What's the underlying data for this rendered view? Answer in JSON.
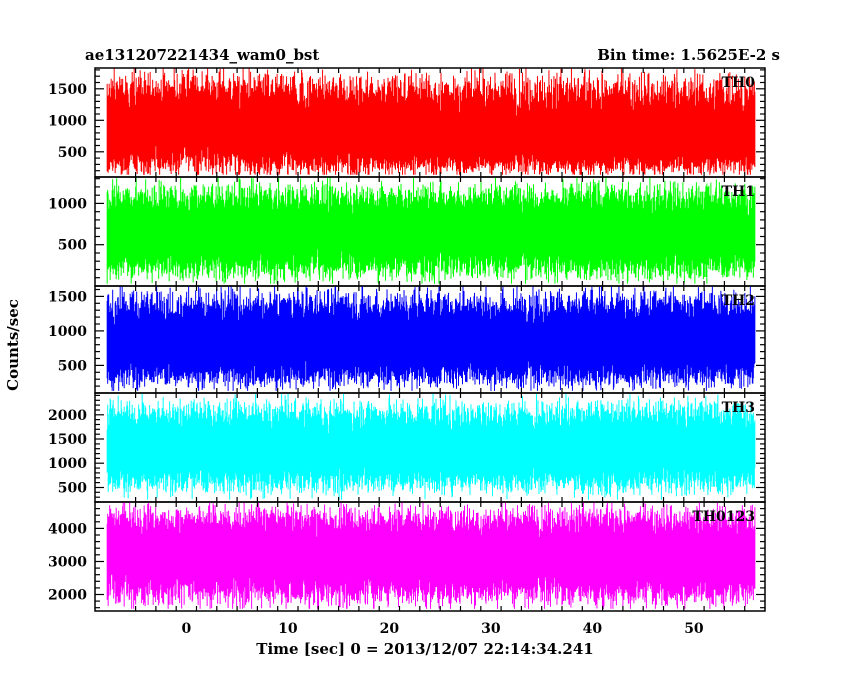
{
  "chart_data": {
    "type": "line",
    "title_left": "ae131207221434_wam0_bst",
    "title_right": "Bin time: 1.5625E-2 s",
    "xlabel": "Time [sec] 0 = 2013/12/07 22:14:34.241",
    "ylabel": "Counts/sec",
    "xlim": [
      -9,
      57
    ],
    "x_ticks": [
      0,
      10,
      20,
      30,
      40,
      50
    ],
    "x_tick_labels": [
      "0",
      "10",
      "20",
      "30",
      "40",
      "50"
    ],
    "x_data_range": [
      -7.8,
      56.0
    ],
    "bin_time": 0.015625,
    "grid": false,
    "panels": [
      {
        "name": "TH0",
        "color": "#ff0000",
        "ylim": [
          100,
          1830
        ],
        "y_ticks": [
          500,
          1000,
          1500
        ],
        "y_tick_labels": [
          "500",
          "1000",
          "1500"
        ],
        "typical_range": [
          150,
          1750
        ],
        "mean": 700,
        "trend": [
          [
            -8,
            750
          ],
          [
            0,
            900
          ],
          [
            3,
            1000
          ],
          [
            6,
            850
          ],
          [
            12,
            760
          ],
          [
            20,
            720
          ],
          [
            30,
            700
          ],
          [
            40,
            700
          ],
          [
            48,
            760
          ],
          [
            56,
            720
          ]
        ]
      },
      {
        "name": "TH1",
        "color": "#00ff00",
        "ylim": [
          0,
          1320
        ],
        "y_ticks": [
          500,
          1000
        ],
        "y_tick_labels": [
          "500",
          "1000"
        ],
        "typical_range": [
          100,
          1250
        ],
        "mean": 650,
        "trend": [
          [
            -8,
            650
          ],
          [
            56,
            650
          ]
        ]
      },
      {
        "name": "TH2",
        "color": "#0000ff",
        "ylim": [
          100,
          1650
        ],
        "y_ticks": [
          500,
          1000,
          1500
        ],
        "y_tick_labels": [
          "500",
          "1000",
          "1500"
        ],
        "typical_range": [
          200,
          1600
        ],
        "mean": 800,
        "trend": [
          [
            -8,
            800
          ],
          [
            56,
            800
          ]
        ]
      },
      {
        "name": "TH3",
        "color": "#00ffff",
        "ylim": [
          200,
          2450
        ],
        "y_ticks": [
          500,
          1000,
          1500,
          2000
        ],
        "y_tick_labels": [
          "500",
          "1000",
          "1500",
          "2000"
        ],
        "typical_range": [
          400,
          2300
        ],
        "mean": 1300,
        "trend": [
          [
            -8,
            1300
          ],
          [
            56,
            1300
          ]
        ]
      },
      {
        "name": "TH0123",
        "color": "#ff00ff",
        "ylim": [
          1500,
          4800
        ],
        "y_ticks": [
          2000,
          3000,
          4000
        ],
        "y_tick_labels": [
          "2000",
          "3000",
          "4000"
        ],
        "typical_range": [
          1700,
          4700
        ],
        "mean": 3200,
        "trend": [
          [
            -8,
            3200
          ],
          [
            3,
            3300
          ],
          [
            20,
            3200
          ],
          [
            56,
            3200
          ]
        ]
      }
    ]
  }
}
